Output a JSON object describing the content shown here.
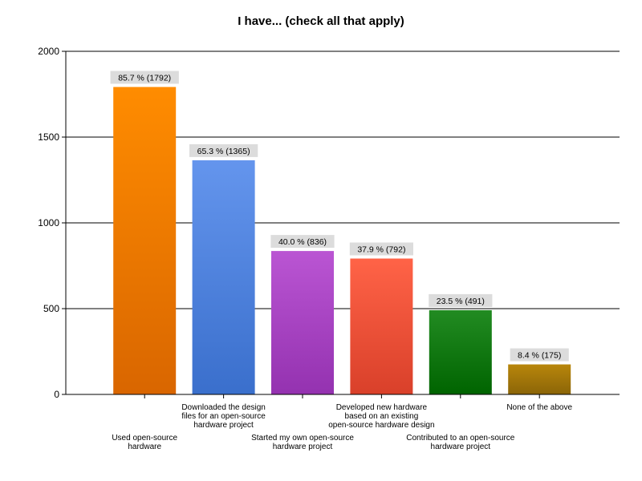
{
  "chart_data": {
    "type": "bar",
    "title": "I have... (check all that apply)",
    "xlabel": "",
    "ylabel": "",
    "ylim": [
      0,
      2000
    ],
    "yticks": [
      0,
      500,
      1000,
      1500,
      2000
    ],
    "grid": true,
    "legend": "none",
    "categories": [
      [
        "Used open-source",
        "hardware"
      ],
      [
        "Downloaded the design",
        "files for an open-source",
        "hardware project"
      ],
      [
        "Started my own open-source",
        "hardware project"
      ],
      [
        "Developed new hardware",
        "based on an existing",
        "open-source hardware design"
      ],
      [
        "Contributed to an open-source",
        "hardware project"
      ],
      [
        "None of the above"
      ]
    ],
    "values": [
      1792,
      1365,
      836,
      792,
      491,
      175
    ],
    "data_labels": [
      "85.7 % (1792)",
      "65.3 % (1365)",
      "40.0 % (836)",
      "37.9 % (792)",
      "23.5 % (491)",
      "8.4 % (175)"
    ],
    "colors": [
      [
        "#ff8c00",
        "#d96600"
      ],
      [
        "#6495ed",
        "#3a6fcc"
      ],
      [
        "#ba55d3",
        "#9432b0"
      ],
      [
        "#ff6347",
        "#d9402a"
      ],
      [
        "#228b22",
        "#006400"
      ],
      [
        "#b8860b",
        "#8b6508"
      ]
    ]
  }
}
